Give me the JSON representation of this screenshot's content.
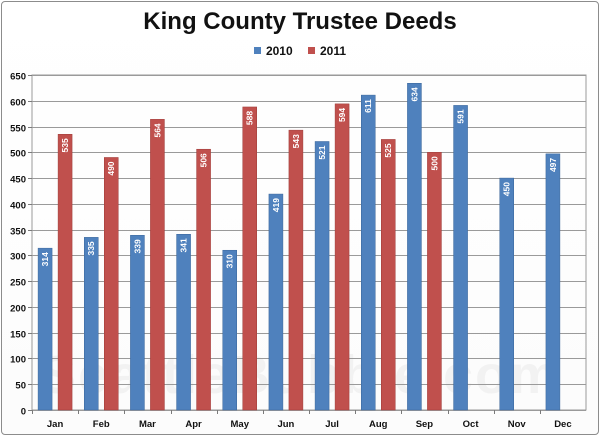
{
  "chart_data": {
    "type": "bar",
    "title": "King County Trustee Deeds",
    "categories": [
      "Jan",
      "Feb",
      "Mar",
      "Apr",
      "May",
      "Jun",
      "Jul",
      "Aug",
      "Sep",
      "Oct",
      "Nov",
      "Dec"
    ],
    "series": [
      {
        "name": "2010",
        "color": "#4f81bd",
        "values": [
          314,
          335,
          339,
          341,
          310,
          419,
          521,
          611,
          634,
          591,
          450,
          497
        ]
      },
      {
        "name": "2011",
        "color": "#c0504d",
        "values": [
          535,
          490,
          564,
          506,
          588,
          543,
          594,
          525,
          500,
          null,
          null,
          null
        ]
      }
    ],
    "ylim": [
      0,
      650
    ],
    "yticks": [
      0,
      50,
      100,
      150,
      200,
      250,
      300,
      350,
      400,
      450,
      500,
      550,
      600,
      650
    ],
    "grid": true,
    "legend_position": "top",
    "data_labels": true
  },
  "watermark": "SeattleBubble.com"
}
